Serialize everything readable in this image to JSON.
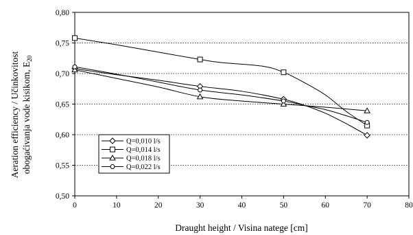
{
  "chart_data": {
    "type": "line",
    "xlabel": "Draught height / Visina natege [cm]",
    "ylabel_line1": "Aeration efficiency / Učinkovitost",
    "ylabel_line2": "obogaćivanja vode kisikom, E",
    "ylabel_subscript": "20",
    "xlim": [
      0,
      80
    ],
    "ylim": [
      0.5,
      0.8
    ],
    "x_ticks": [
      "0",
      "10",
      "20",
      "30",
      "40",
      "50",
      "60",
      "70",
      "80"
    ],
    "y_ticks": [
      "0,50",
      "0,55",
      "0,60",
      "0,65",
      "0,70",
      "0,75",
      "0,80"
    ],
    "grid": "horizontal-dotted",
    "legend_position": "bottom-left",
    "series": [
      {
        "name": "Q=0,010 l/s",
        "marker": "diamond",
        "x": [
          0,
          30,
          50,
          70
        ],
        "y": [
          0.708,
          0.679,
          0.658,
          0.599
        ],
        "curve": [
          [
            0,
            0.708
          ],
          [
            10,
            0.698
          ],
          [
            20,
            0.689
          ],
          [
            30,
            0.679
          ],
          [
            40,
            0.671
          ],
          [
            50,
            0.658
          ],
          [
            55,
            0.648
          ],
          [
            60,
            0.635
          ],
          [
            65,
            0.618
          ],
          [
            70,
            0.599
          ]
        ]
      },
      {
        "name": "Q=0,014 l/s",
        "marker": "square",
        "x": [
          0,
          30,
          50,
          70
        ],
        "y": [
          0.758,
          0.723,
          0.702,
          0.615
        ],
        "curve": [
          [
            0,
            0.758
          ],
          [
            10,
            0.747
          ],
          [
            20,
            0.735
          ],
          [
            30,
            0.723
          ],
          [
            35,
            0.718
          ],
          [
            45,
            0.712
          ],
          [
            50,
            0.702
          ],
          [
            55,
            0.685
          ],
          [
            60,
            0.665
          ],
          [
            65,
            0.638
          ],
          [
            70,
            0.615
          ]
        ]
      },
      {
        "name": "Q=0,018 l/s",
        "marker": "triangle",
        "x": [
          0,
          30,
          50,
          70
        ],
        "y": [
          0.706,
          0.662,
          0.65,
          0.639
        ],
        "curve": [
          [
            0,
            0.706
          ],
          [
            10,
            0.692
          ],
          [
            20,
            0.678
          ],
          [
            30,
            0.662
          ],
          [
            40,
            0.655
          ],
          [
            50,
            0.65
          ],
          [
            60,
            0.645
          ],
          [
            70,
            0.639
          ]
        ]
      },
      {
        "name": "Q=0,022 l/s",
        "marker": "circle",
        "x": [
          0,
          30,
          50,
          70
        ],
        "y": [
          0.711,
          0.673,
          0.655,
          0.62
        ],
        "curve": [
          [
            0,
            0.711
          ],
          [
            10,
            0.699
          ],
          [
            20,
            0.686
          ],
          [
            30,
            0.673
          ],
          [
            40,
            0.665
          ],
          [
            50,
            0.655
          ],
          [
            55,
            0.648
          ],
          [
            60,
            0.641
          ],
          [
            65,
            0.631
          ],
          [
            70,
            0.62
          ]
        ]
      }
    ]
  }
}
